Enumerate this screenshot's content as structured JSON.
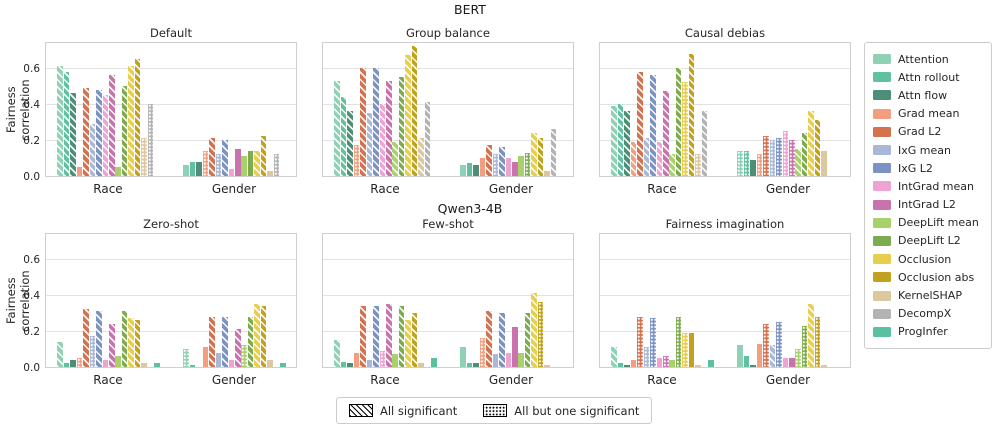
{
  "chart_data": {
    "type": "bar",
    "ylabel": "Fairness correlation",
    "yticks": [
      "0.0",
      "0.2",
      "0.4",
      "0.6"
    ],
    "ytick_values": [
      0.0,
      0.2,
      0.4,
      0.6
    ],
    "ylim": [
      0,
      0.75
    ],
    "grid": true,
    "categories": [
      "Race",
      "Gender"
    ],
    "legend_position": "right",
    "methods": [
      {
        "name": "Attention",
        "color": "#8fd1b4"
      },
      {
        "name": "Attn rollout",
        "color": "#60c1a0"
      },
      {
        "name": "Attn flow",
        "color": "#4e8d76"
      },
      {
        "name": "Grad mean",
        "color": "#f49e80"
      },
      {
        "name": "Grad L2",
        "color": "#d4714e"
      },
      {
        "name": "IxG mean",
        "color": "#a9b8d8"
      },
      {
        "name": "IxG L2",
        "color": "#7b92c3"
      },
      {
        "name": "IntGrad mean",
        "color": "#efa3d2"
      },
      {
        "name": "IntGrad L2",
        "color": "#c973ac"
      },
      {
        "name": "DeepLift mean",
        "color": "#a8d16b"
      },
      {
        "name": "DeepLift L2",
        "color": "#7cab50"
      },
      {
        "name": "Occlusion",
        "color": "#e8ce4d"
      },
      {
        "name": "Occlusion abs",
        "color": "#c0a21e"
      },
      {
        "name": "KernelSHAP",
        "color": "#ddc79f"
      },
      {
        "name": "DecompX",
        "color": "#b3b3b3"
      },
      {
        "name": "ProgInfer",
        "color": "#5bbfa2"
      }
    ],
    "hatch_legend": [
      {
        "label": "All significant",
        "hatch": "d"
      },
      {
        "label": "All but one significant",
        "hatch": "o"
      }
    ],
    "rows": [
      {
        "model": "BERT",
        "panels": [
          {
            "title": "Default",
            "groups": [
              {
                "category": "Race",
                "values": [
                  0.61,
                  0.58,
                  0.46,
                  0.05,
                  0.49,
                  0.29,
                  0.48,
                  0.45,
                  0.56,
                  0.05,
                  0.5,
                  0.61,
                  0.65,
                  0.21,
                  0.4,
                  0
                ],
                "hatch": [
                  "d",
                  "d",
                  "d",
                  "s",
                  "d",
                  "d",
                  "d",
                  "d",
                  "d",
                  "s",
                  "d",
                  "d",
                  "d",
                  "o",
                  "o",
                  "s"
                ]
              },
              {
                "category": "Gender",
                "values": [
                  0.06,
                  0.08,
                  0.08,
                  0.14,
                  0.21,
                  0.12,
                  0.2,
                  0.04,
                  0.15,
                  0.11,
                  0.14,
                  0.14,
                  0.22,
                  0.03,
                  0.12,
                  0
                ],
                "hatch": [
                  "s",
                  "s",
                  "s",
                  "o",
                  "d",
                  "o",
                  "d",
                  "s",
                  "s",
                  "s",
                  "s",
                  "d",
                  "d",
                  "s",
                  "o",
                  "s"
                ]
              }
            ]
          },
          {
            "title": "Group balance",
            "groups": [
              {
                "category": "Race",
                "values": [
                  0.53,
                  0.44,
                  0.36,
                  0.17,
                  0.6,
                  0.35,
                  0.6,
                  0.4,
                  0.53,
                  0.19,
                  0.55,
                  0.67,
                  0.72,
                  0.21,
                  0.41,
                  0
                ],
                "hatch": [
                  "d",
                  "d",
                  "d",
                  "o",
                  "d",
                  "d",
                  "d",
                  "d",
                  "d",
                  "d",
                  "d",
                  "d",
                  "d",
                  "d",
                  "d",
                  "s"
                ]
              },
              {
                "category": "Gender",
                "values": [
                  0.06,
                  0.07,
                  0.06,
                  0.1,
                  0.17,
                  0.12,
                  0.16,
                  0.1,
                  0.08,
                  0.11,
                  0.13,
                  0.24,
                  0.21,
                  0.03,
                  0.26,
                  0
                ],
                "hatch": [
                  "s",
                  "s",
                  "s",
                  "s",
                  "d",
                  "o",
                  "d",
                  "s",
                  "s",
                  "s",
                  "o",
                  "d",
                  "d",
                  "s",
                  "d",
                  "s"
                ]
              }
            ]
          },
          {
            "title": "Causal debias",
            "groups": [
              {
                "category": "Race",
                "values": [
                  0.39,
                  0.4,
                  0.36,
                  0.19,
                  0.58,
                  0.21,
                  0.56,
                  0.19,
                  0.47,
                  0.12,
                  0.6,
                  0.52,
                  0.68,
                  0.12,
                  0.36,
                  0
                ],
                "hatch": [
                  "d",
                  "d",
                  "d",
                  "d",
                  "d",
                  "d",
                  "d",
                  "d",
                  "d",
                  "d",
                  "d",
                  "o",
                  "d",
                  "o",
                  "d",
                  "s"
                ]
              },
              {
                "category": "Gender",
                "values": [
                  0.14,
                  0.14,
                  0.09,
                  0.12,
                  0.22,
                  0.2,
                  0.21,
                  0.25,
                  0.2,
                  0.15,
                  0.24,
                  0.36,
                  0.31,
                  0.14,
                  0,
                  0
                ],
                "hatch": [
                  "o",
                  "o",
                  "s",
                  "o",
                  "o",
                  "o",
                  "o",
                  "o",
                  "o",
                  "d",
                  "d",
                  "d",
                  "d",
                  "s",
                  "s",
                  "s"
                ]
              }
            ]
          }
        ]
      },
      {
        "model": "Qwen3-4B",
        "panels": [
          {
            "title": "Zero-shot",
            "groups": [
              {
                "category": "Race",
                "values": [
                  0.14,
                  0.02,
                  0.04,
                  0.05,
                  0.32,
                  0.17,
                  0.31,
                  0.04,
                  0.24,
                  0.06,
                  0.31,
                  0.27,
                  0.26,
                  0.02,
                  0,
                  0.02
                ],
                "hatch": [
                  "d",
                  "s",
                  "s",
                  "o",
                  "d",
                  "o",
                  "d",
                  "s",
                  "d",
                  "s",
                  "d",
                  "d",
                  "d",
                  "s",
                  "s",
                  "s"
                ]
              },
              {
                "category": "Gender",
                "values": [
                  0.1,
                  0.01,
                  0,
                  0.11,
                  0.28,
                  0.08,
                  0.28,
                  0.04,
                  0.21,
                  0.12,
                  0.28,
                  0.35,
                  0.34,
                  0.04,
                  0,
                  0.02
                ],
                "hatch": [
                  "o",
                  "s",
                  "s",
                  "s",
                  "d",
                  "s",
                  "d",
                  "s",
                  "d",
                  "o",
                  "d",
                  "d",
                  "d",
                  "s",
                  "s",
                  "s"
                ]
              }
            ]
          },
          {
            "title": "Few-shot",
            "groups": [
              {
                "category": "Race",
                "values": [
                  0.15,
                  0.03,
                  0.02,
                  0.08,
                  0.34,
                  0.04,
                  0.34,
                  0.09,
                  0.35,
                  0.07,
                  0.34,
                  0.26,
                  0.3,
                  0.02,
                  0,
                  0.05
                ],
                "hatch": [
                  "d",
                  "s",
                  "s",
                  "s",
                  "d",
                  "s",
                  "d",
                  "o",
                  "d",
                  "s",
                  "d",
                  "d",
                  "d",
                  "s",
                  "s",
                  "s"
                ]
              },
              {
                "category": "Gender",
                "values": [
                  0.11,
                  0.02,
                  0.02,
                  0.16,
                  0.31,
                  0.07,
                  0.3,
                  0.08,
                  0.22,
                  0.08,
                  0.3,
                  0.41,
                  0.36,
                  0.01,
                  0,
                  0
                ],
                "hatch": [
                  "s",
                  "s",
                  "s",
                  "o",
                  "d",
                  "s",
                  "d",
                  "s",
                  "s",
                  "s",
                  "d",
                  "d",
                  "o",
                  "s",
                  "s",
                  "s"
                ]
              }
            ]
          },
          {
            "title": "Fairness imagination",
            "groups": [
              {
                "category": "Race",
                "values": [
                  0.11,
                  0.02,
                  0.01,
                  0.04,
                  0.28,
                  0.11,
                  0.27,
                  0.05,
                  0.06,
                  0.04,
                  0.28,
                  0.19,
                  0.19,
                  0.01,
                  0,
                  0.04
                ],
                "hatch": [
                  "d",
                  "s",
                  "s",
                  "s",
                  "o",
                  "o",
                  "o",
                  "s",
                  "o",
                  "s",
                  "o",
                  "o",
                  "s",
                  "s",
                  "s",
                  "s"
                ]
              },
              {
                "category": "Gender",
                "values": [
                  0.12,
                  0.06,
                  0.01,
                  0.13,
                  0.24,
                  0.12,
                  0.25,
                  0.05,
                  0.05,
                  0.1,
                  0.23,
                  0.35,
                  0.28,
                  0.01,
                  0,
                  0
                ],
                "hatch": [
                  "s",
                  "s",
                  "s",
                  "s",
                  "o",
                  "d",
                  "o",
                  "s",
                  "s",
                  "o",
                  "o",
                  "d",
                  "o",
                  "s",
                  "s",
                  "s"
                ]
              }
            ]
          }
        ]
      }
    ]
  }
}
